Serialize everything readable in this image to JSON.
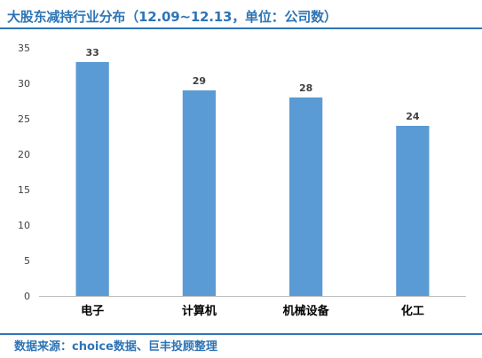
{
  "title": "大股东减持行业分布（12.09~12.13，单位：公司数）",
  "source": "数据来源：choice数据、巨丰投顾整理",
  "chart_data": {
    "type": "bar",
    "categories": [
      "电子",
      "计算机",
      "机械设备",
      "化工"
    ],
    "values": [
      33,
      29,
      28,
      24
    ],
    "ylim": [
      0,
      35
    ],
    "yticks": [
      0,
      5,
      10,
      15,
      20,
      25,
      30,
      35
    ],
    "grid": false,
    "data_labels": true,
    "bar_color": "#5b9bd5",
    "axis_color": "#bfbfbf"
  }
}
